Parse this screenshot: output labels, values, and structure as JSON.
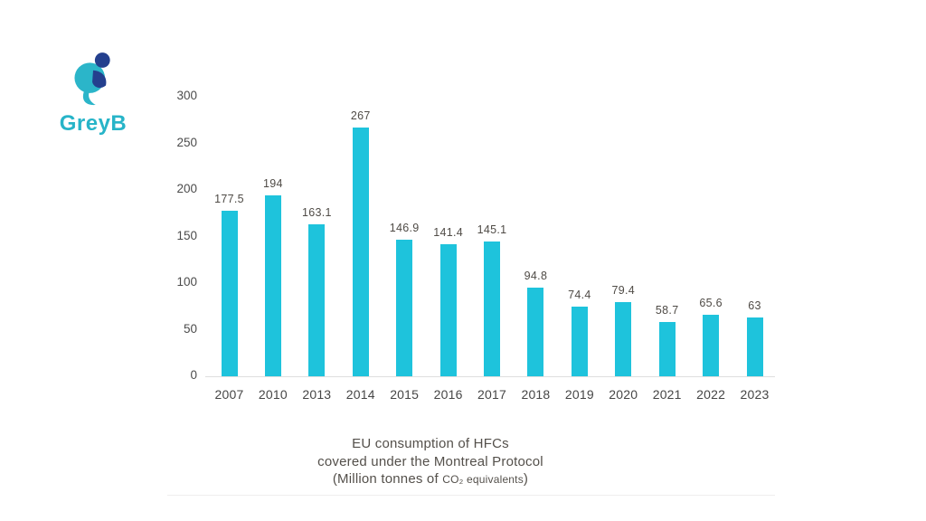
{
  "logo": {
    "text": "GreyB",
    "teal": "#2bb5c9",
    "navy": "#24408e"
  },
  "chart_data": {
    "type": "bar",
    "categories": [
      "2007",
      "2010",
      "2013",
      "2014",
      "2015",
      "2016",
      "2017",
      "2018",
      "2019",
      "2020",
      "2021",
      "2022",
      "2023"
    ],
    "values": [
      177.5,
      194,
      163.1,
      267,
      146.9,
      141.4,
      145.1,
      94.8,
      74.4,
      79.4,
      58.7,
      65.6,
      63
    ],
    "value_labels": [
      "177.5",
      "194",
      "163.1",
      "267",
      "146.9",
      "141.4",
      "145.1",
      "94.8",
      "74.4",
      "79.4",
      "58.7",
      "65.6",
      "63"
    ],
    "y_ticks": [
      0,
      50,
      100,
      150,
      200,
      250,
      300
    ],
    "ylim": [
      0,
      300
    ],
    "bar_color": "#1ec3dc",
    "grid": false,
    "legend": false,
    "title_lines": [
      "EU consumption of HFCs",
      "covered under the Montreal Protocol"
    ],
    "subtitle_prefix": "(Million tonnes of ",
    "subtitle_small": "CO₂ equivalents",
    "subtitle_suffix": ")"
  }
}
